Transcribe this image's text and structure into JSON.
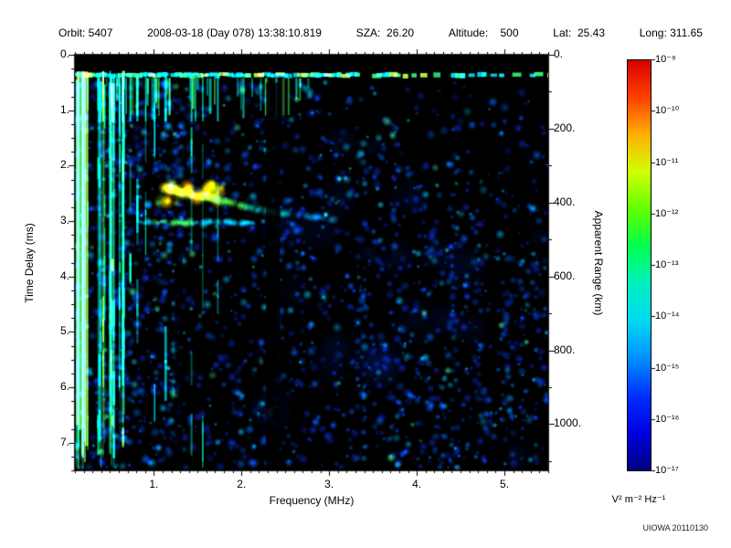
{
  "header": {
    "segments": [
      "Orbit: 5407",
      "2008-03-18 (Day 078) 13:38:10.819",
      "SZA:  26.20",
      "Altitude:    500",
      "Lat:  25.43",
      "Long: 311.65"
    ]
  },
  "footer": {
    "credit": "UIOWA 20110130"
  },
  "chart_data": {
    "type": "heatmap",
    "description": "Radar sounder ionogram: received spectral density vs frequency and time delay; bright surface line near 0.36 ms, ionospheric echo trace descending from (1.15 MHz, 2.4 ms) to (3.1 MHz, 3.0 ms), dense low-frequency interference streaks below 1.7 MHz, blue speckle noise elsewhere, dark blanked column near 2.3-2.45 MHz.",
    "x_axis": {
      "label": "Frequency (MHz)",
      "range": [
        0.1,
        5.5
      ],
      "major_ticks": [
        1,
        2,
        3,
        4,
        5
      ],
      "tick_labels": [
        "1.",
        "2.",
        "3.",
        "4.",
        "5."
      ],
      "minor_tick_step": 0.1
    },
    "y_axis_left": {
      "label": "Time Delay (ms)",
      "range": [
        0,
        7.5
      ],
      "major_ticks": [
        0,
        1,
        2,
        3,
        4,
        5,
        6,
        7
      ],
      "tick_labels": [
        "0.",
        "1.",
        "2.",
        "3.",
        "4.",
        "5.",
        "6.",
        "7."
      ],
      "minor_tick_step": 0.25
    },
    "y_axis_right": {
      "label": "Apparent Range (km)",
      "range": [
        0,
        1125
      ],
      "major_ticks": [
        0,
        200,
        400,
        600,
        800,
        1000
      ],
      "tick_labels": [
        "0.",
        "200.",
        "400.",
        "600.",
        "800.",
        "1000."
      ],
      "minor_tick_step": 100
    },
    "colorbar": {
      "label": "V² m⁻² Hz⁻¹",
      "scale": "log",
      "range_exponents": [
        -17,
        -9
      ],
      "tick_labels": [
        "10⁻⁹",
        "10⁻¹⁰",
        "10⁻¹¹",
        "10⁻¹²",
        "10⁻¹³",
        "10⁻¹⁴",
        "10⁻¹⁵",
        "10⁻¹⁶",
        "10⁻¹⁷"
      ],
      "colors_bottom_to_top": [
        "#000080",
        "#0000e0",
        "#0030ff",
        "#0090ff",
        "#00d8f0",
        "#00f0c0",
        "#00ff50",
        "#60ff00",
        "#d0ff00",
        "#ffb000",
        "#ff4000",
        "#d80000"
      ]
    },
    "features": {
      "seed": 20110130,
      "background_color": "#000000",
      "noise_blobs": 3200,
      "surface_line": {
        "t": 0.36
      },
      "left_streaks": {
        "f_range": [
          0.1,
          0.68
        ],
        "count": 30
      },
      "mid_streaks": [
        0.72,
        0.8,
        0.9,
        1.0,
        1.12,
        1.42,
        1.55,
        1.72
      ],
      "drip_count": 40,
      "echo_hotspot": {
        "f": [
          1.1,
          1.8
        ],
        "t": [
          2.3,
          2.68
        ]
      },
      "echo_trace": [
        [
          1.15,
          2.42
        ],
        [
          1.45,
          2.52
        ],
        [
          1.75,
          2.63
        ],
        [
          2.05,
          2.74
        ],
        [
          2.35,
          2.83
        ],
        [
          2.65,
          2.9
        ],
        [
          3.1,
          2.98
        ]
      ],
      "second_trace": {
        "t": 3.03,
        "f_range": [
          0.85,
          2.15
        ]
      },
      "dark_columns": [
        {
          "f": [
            2.28,
            2.44
          ],
          "t": [
            0.5,
            7.5
          ],
          "alpha": 0.85
        },
        {
          "f": [
            1.24,
            1.33
          ],
          "t": [
            3.3,
            7.5
          ],
          "alpha": 0.7
        }
      ],
      "right_dotted_columns": 14,
      "cloud_blobs": 26
    }
  }
}
